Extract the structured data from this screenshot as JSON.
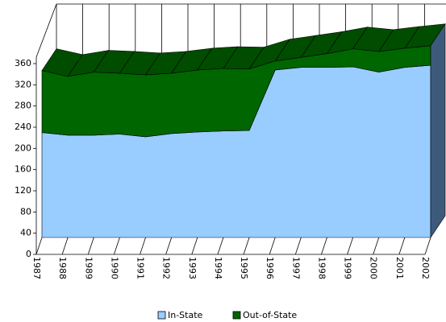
{
  "chart_data": {
    "type": "area3d",
    "categories": [
      "1987",
      "1988",
      "1989",
      "1990",
      "1991",
      "1992",
      "1993",
      "1994",
      "1995",
      "1996",
      "1997",
      "1998",
      "1999",
      "2000",
      "2001",
      "2002"
    ],
    "series": [
      {
        "name": "In-State",
        "color": "#99ccff",
        "values": [
          198,
          193,
          193,
          195,
          190,
          196,
          199,
          201,
          202,
          316,
          321,
          321,
          322,
          312,
          321,
          325
        ]
      },
      {
        "name": "Out-of-State",
        "color": "#006600",
        "values": [
          117,
          111,
          119,
          115,
          117,
          114,
          117,
          118,
          116,
          17,
          19,
          26,
          34,
          39,
          36,
          37
        ]
      }
    ],
    "ylim": [
      0,
      360
    ],
    "yticks": [
      0,
      40,
      80,
      120,
      160,
      200,
      240,
      280,
      320,
      360
    ],
    "stacked": true
  }
}
